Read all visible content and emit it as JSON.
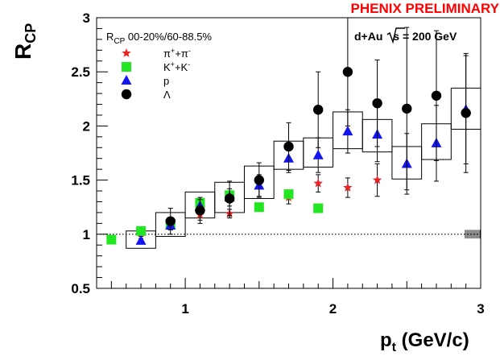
{
  "chart_data": {
    "type": "scatter",
    "preliminary_label": "PHENIX PRELIMINARY",
    "system_label_prefix": "d+Au ",
    "system_label_root": "s",
    "system_label_suffix": " = 200 GeV",
    "legend_title": {
      "main": "R",
      "sub": "CP",
      "rest": " 00-20%/60-88.5%"
    },
    "ylabel": {
      "main": "R",
      "sub": "CP"
    },
    "xlabel": {
      "main": "p",
      "sub": "t",
      "rest": " (GeV/c)"
    },
    "xlim": [
      0.4,
      3.0
    ],
    "ylim": [
      0.5,
      3.0
    ],
    "x_ticks": [
      1,
      2,
      3
    ],
    "x_tick_labels": [
      "1",
      "2",
      "3"
    ],
    "y_ticks": [
      0.5,
      1,
      1.5,
      2,
      2.5,
      3
    ],
    "y_tick_labels": [
      "0.5",
      "1",
      "1.5",
      "2",
      "2.5",
      "3"
    ],
    "reference_line": 1.0,
    "series": [
      {
        "legend": {
          "base": "π",
          "sup1": "+",
          "mid": "+π",
          "sup2": "-"
        },
        "marker": "star",
        "color": "#e8262a",
        "points": [
          {
            "x": 0.5,
            "y": 0.94,
            "err": 0.03
          },
          {
            "x": 0.7,
            "y": 1.01,
            "err": 0.03
          },
          {
            "x": 0.9,
            "y": 1.08,
            "err": 0.04
          },
          {
            "x": 1.1,
            "y": 1.18,
            "err": 0.05
          },
          {
            "x": 1.3,
            "y": 1.19,
            "err": 0.04
          },
          {
            "x": 1.5,
            "y": 1.47,
            "err": 0.05
          },
          {
            "x": 1.7,
            "y": 1.34,
            "err": 0.06
          },
          {
            "x": 1.9,
            "y": 1.47,
            "err": 0.08
          },
          {
            "x": 2.1,
            "y": 1.43,
            "err": 0.09
          },
          {
            "x": 2.3,
            "y": 1.5,
            "err": 0.15
          }
        ]
      },
      {
        "legend": {
          "base": "K",
          "sup1": "+",
          "mid": "+K",
          "sup2": "-"
        },
        "marker": "square",
        "color": "#22e622",
        "points": [
          {
            "x": 0.5,
            "y": 0.95,
            "err": 0.0
          },
          {
            "x": 0.7,
            "y": 1.03,
            "err": 0.0
          },
          {
            "x": 0.9,
            "y": 1.09,
            "err": 0.0
          },
          {
            "x": 1.1,
            "y": 1.29,
            "err": 0.0
          },
          {
            "x": 1.3,
            "y": 1.36,
            "err": 0.0
          },
          {
            "x": 1.5,
            "y": 1.25,
            "err": 0.0
          },
          {
            "x": 1.7,
            "y": 1.37,
            "err": 0.0
          },
          {
            "x": 1.9,
            "y": 1.24,
            "err": 0.0
          }
        ]
      },
      {
        "legend": {
          "base": "p",
          "sup1": "",
          "mid": "",
          "sup2": ""
        },
        "marker": "triangle",
        "color": "#1515f0",
        "points": [
          {
            "x": 0.7,
            "y": 0.94,
            "err": 0.02
          },
          {
            "x": 0.9,
            "y": 1.08,
            "err": 0.04
          },
          {
            "x": 1.1,
            "y": 1.26,
            "err": 0.06
          },
          {
            "x": 1.3,
            "y": 1.34,
            "err": 0.08
          },
          {
            "x": 1.5,
            "y": 1.45,
            "err": 0.1
          },
          {
            "x": 1.7,
            "y": 1.7,
            "err": 0.13
          },
          {
            "x": 1.9,
            "y": 1.73,
            "err": 0.16
          },
          {
            "x": 2.1,
            "y": 1.95,
            "err": 0.2
          },
          {
            "x": 2.3,
            "y": 1.92,
            "err": 0.25
          },
          {
            "x": 2.5,
            "y": 1.65,
            "err": 0.28
          },
          {
            "x": 2.7,
            "y": 1.84,
            "err": 0.35
          },
          {
            "x": 2.9,
            "y": 2.15,
            "err": 0.5
          }
        ]
      },
      {
        "legend": {
          "base": "Λ",
          "sup1": "",
          "mid": "",
          "sup2": ""
        },
        "marker": "circle",
        "color": "#000000",
        "points": [
          {
            "x": 0.9,
            "y": 1.12,
            "err": 0.12
          },
          {
            "x": 1.1,
            "y": 1.22,
            "err": 0.12
          },
          {
            "x": 1.3,
            "y": 1.33,
            "err": 0.16
          },
          {
            "x": 1.5,
            "y": 1.5,
            "err": 0.16
          },
          {
            "x": 1.7,
            "y": 1.81,
            "err": 0.22
          },
          {
            "x": 1.9,
            "y": 2.15,
            "err": 0.35
          },
          {
            "x": 2.1,
            "y": 2.5,
            "err": 0.5
          },
          {
            "x": 2.3,
            "y": 2.21,
            "err": 0.4
          },
          {
            "x": 2.5,
            "y": 2.16,
            "err": 0.75
          },
          {
            "x": 2.7,
            "y": 2.28,
            "err": 0.6
          },
          {
            "x": 2.9,
            "y": 2.12,
            "err": 0.55
          }
        ]
      }
    ],
    "systematic_boxes": [
      {
        "x0": 0.6,
        "x1": 0.8,
        "y0": 0.87,
        "y1": 1.03
      },
      {
        "x0": 0.8,
        "x1": 1.0,
        "y0": 0.98,
        "y1": 1.2
      },
      {
        "x0": 1.0,
        "x1": 1.2,
        "y0": 1.15,
        "y1": 1.39
      },
      {
        "x0": 1.2,
        "x1": 1.4,
        "y0": 1.2,
        "y1": 1.48
      },
      {
        "x0": 1.4,
        "x1": 1.6,
        "y0": 1.33,
        "y1": 1.63
      },
      {
        "x0": 1.6,
        "x1": 1.8,
        "y0": 1.6,
        "y1": 1.86
      },
      {
        "x0": 1.8,
        "x1": 2.0,
        "y0": 1.62,
        "y1": 1.89
      },
      {
        "x0": 2.0,
        "x1": 2.2,
        "y0": 1.79,
        "y1": 2.13
      },
      {
        "x0": 2.2,
        "x1": 2.4,
        "y0": 1.76,
        "y1": 2.06
      },
      {
        "x0": 2.4,
        "x1": 2.6,
        "y0": 1.51,
        "y1": 1.81
      },
      {
        "x0": 2.6,
        "x1": 2.8,
        "y0": 1.69,
        "y1": 2.02
      },
      {
        "x0": 2.8,
        "x1": 3.0,
        "y0": 1.97,
        "y1": 2.35
      }
    ]
  }
}
